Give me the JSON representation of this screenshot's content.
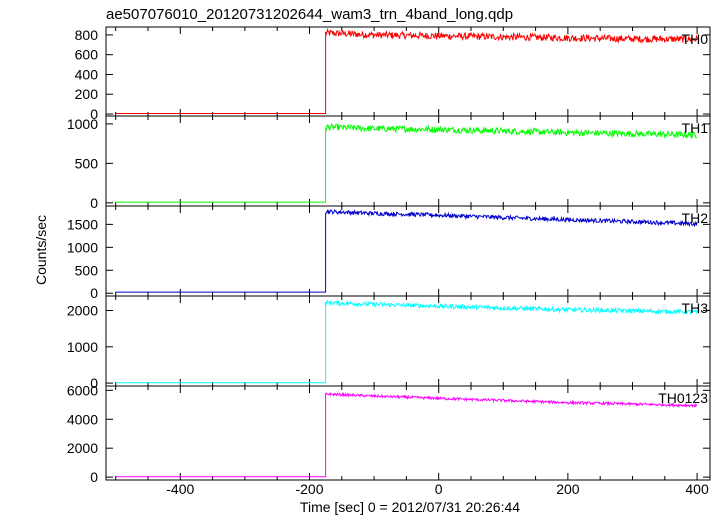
{
  "chart_data": {
    "type": "line",
    "title": "ae507076010_20120731202644_wam3_trn_4band_long.qdp",
    "xlabel": "Time [sec] 0 = 2012/07/31 20:26:44",
    "ylabel": "Counts/sec",
    "xlim": [
      -515,
      420
    ],
    "x_ticks": [
      -400,
      -200,
      0,
      200,
      400
    ],
    "grid": false,
    "onset_x": -175,
    "end_x": 400,
    "start_x": -500,
    "panels": [
      {
        "name": "TH0",
        "color": "#ff0000",
        "ylim": [
          -20,
          880
        ],
        "yticks": [
          0,
          200,
          400,
          600,
          800
        ],
        "pre_level": 5,
        "post": {
          "x": [
            -175,
            -100,
            0,
            100,
            200,
            300,
            400
          ],
          "y": [
            820,
            800,
            790,
            780,
            770,
            760,
            755
          ]
        },
        "noise": 35
      },
      {
        "name": "TH1",
        "color": "#00ff00",
        "ylim": [
          -40,
          1100
        ],
        "yticks": [
          0,
          500,
          1000
        ],
        "pre_level": 10,
        "post": {
          "x": [
            -175,
            -100,
            0,
            100,
            200,
            300,
            400
          ],
          "y": [
            960,
            940,
            930,
            910,
            890,
            875,
            860
          ]
        },
        "noise": 40
      },
      {
        "name": "TH2",
        "color": "#0000cc",
        "ylim": [
          -60,
          1900
        ],
        "yticks": [
          0,
          500,
          1000,
          1500
        ],
        "pre_level": 25,
        "post": {
          "x": [
            -175,
            -100,
            0,
            100,
            200,
            300,
            400
          ],
          "y": [
            1780,
            1740,
            1700,
            1650,
            1600,
            1560,
            1510
          ]
        },
        "noise": 45
      },
      {
        "name": "TH3",
        "color": "#00ffff",
        "ylim": [
          -80,
          2400
        ],
        "yticks": [
          0,
          1000,
          2000
        ],
        "pre_level": 10,
        "post": {
          "x": [
            -175,
            -100,
            0,
            100,
            200,
            300,
            400
          ],
          "y": [
            2220,
            2170,
            2120,
            2070,
            2020,
            1990,
            1960
          ]
        },
        "noise": 60
      },
      {
        "name": "TH0123",
        "color": "#ff00ff",
        "ylim": [
          -200,
          6300
        ],
        "yticks": [
          0,
          2000,
          4000,
          6000
        ],
        "pre_level": 20,
        "post": {
          "x": [
            -175,
            -100,
            0,
            100,
            200,
            300,
            400
          ],
          "y": [
            5750,
            5600,
            5450,
            5300,
            5150,
            5050,
            4950
          ]
        },
        "noise": 90
      }
    ]
  }
}
